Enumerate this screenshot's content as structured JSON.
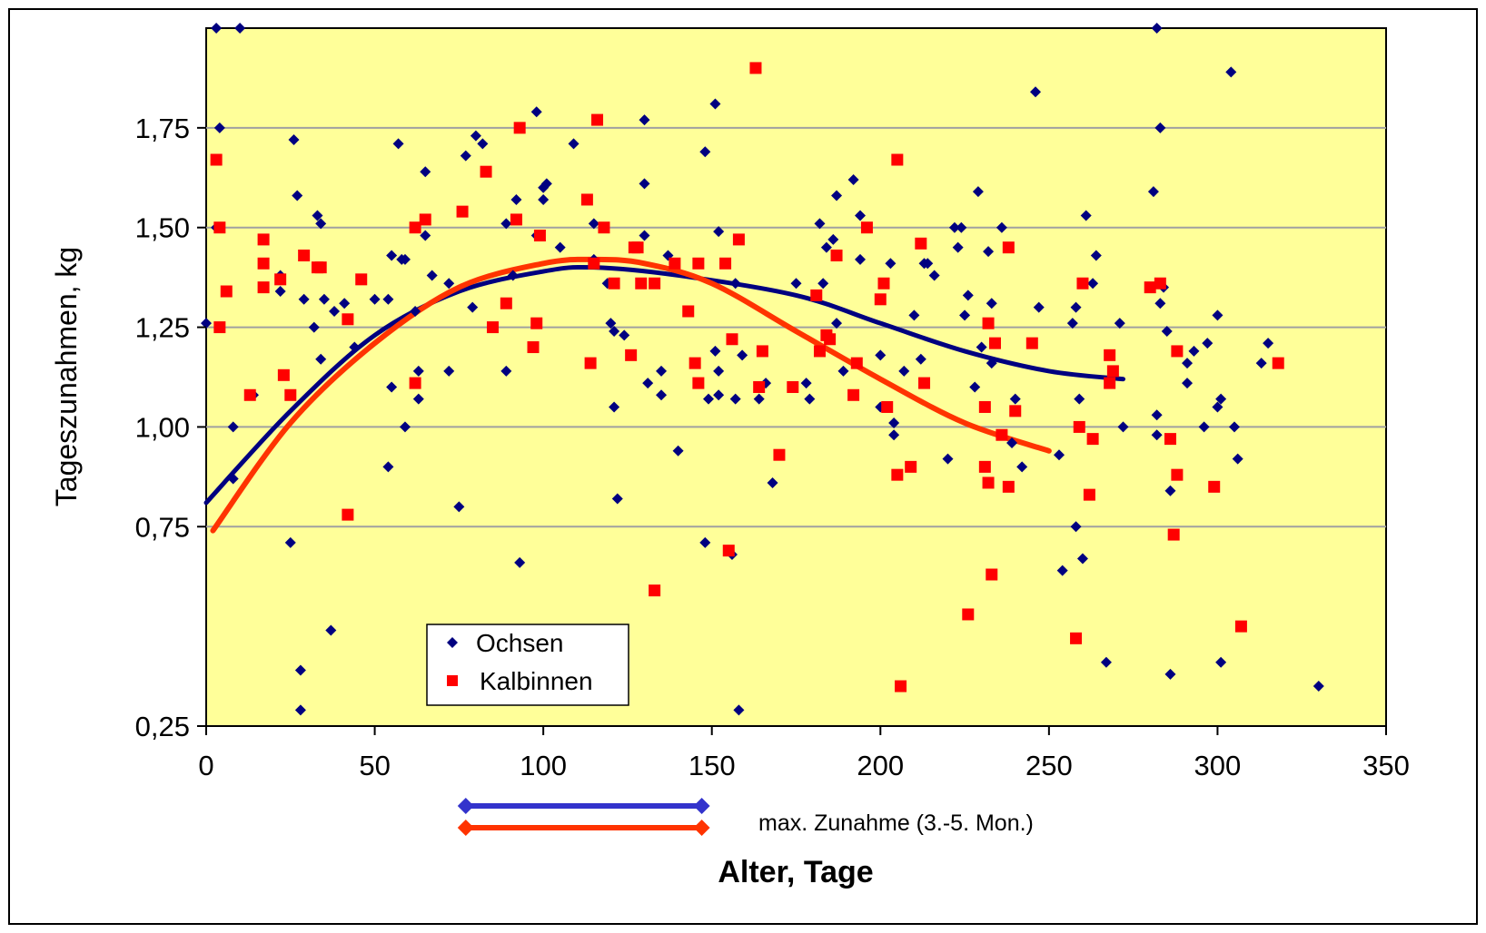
{
  "chart_data": {
    "type": "scatter",
    "xlabel": "Alter, Tage",
    "ylabel": "Tageszunahmen, kg",
    "xlim": [
      0,
      350
    ],
    "ylim": [
      0.25,
      2.0
    ],
    "x_ticks": [
      "0",
      "50",
      "100",
      "150",
      "200",
      "250",
      "300",
      "350"
    ],
    "x_tick_values": [
      0,
      50,
      100,
      150,
      200,
      250,
      300,
      350
    ],
    "y_ticks": [
      "0,25",
      "0,75",
      "1,00",
      "1,25",
      "1,50",
      "1,75"
    ],
    "y_tick_values": [
      0.25,
      0.75,
      1.0,
      1.25,
      1.5,
      1.75
    ],
    "grid": "horizontal",
    "plot_background": "#FFFF99",
    "legend_position": "bottom-left",
    "series": [
      {
        "name": "Ochsen",
        "marker": "diamond",
        "color": "#000080",
        "points": [
          [
            0,
            1.26
          ],
          [
            3,
            2.0
          ],
          [
            10,
            2.0
          ],
          [
            4,
            1.75
          ],
          [
            3,
            1.5
          ],
          [
            8,
            1.0
          ],
          [
            8,
            0.87
          ],
          [
            14,
            1.08
          ],
          [
            22,
            1.38
          ],
          [
            22,
            1.34
          ],
          [
            26,
            1.72
          ],
          [
            27,
            1.58
          ],
          [
            25,
            0.71
          ],
          [
            28,
            0.39
          ],
          [
            28,
            0.29
          ],
          [
            29,
            1.32
          ],
          [
            32,
            1.25
          ],
          [
            33,
            1.53
          ],
          [
            34,
            1.51
          ],
          [
            34,
            1.17
          ],
          [
            35,
            1.32
          ],
          [
            37,
            0.49
          ],
          [
            38,
            1.29
          ],
          [
            41,
            1.31
          ],
          [
            44,
            1.2
          ],
          [
            50,
            1.32
          ],
          [
            54,
            1.32
          ],
          [
            54,
            0.9
          ],
          [
            55,
            1.1
          ],
          [
            55,
            1.43
          ],
          [
            57,
            1.71
          ],
          [
            58,
            1.42
          ],
          [
            59,
            1.42
          ],
          [
            59,
            1.0
          ],
          [
            62,
            1.29
          ],
          [
            63,
            1.14
          ],
          [
            63,
            1.07
          ],
          [
            65,
            1.64
          ],
          [
            65,
            1.48
          ],
          [
            67,
            1.38
          ],
          [
            72,
            1.36
          ],
          [
            72,
            1.14
          ],
          [
            75,
            0.8
          ],
          [
            77,
            1.68
          ],
          [
            79,
            1.3
          ],
          [
            80,
            1.73
          ],
          [
            82,
            1.71
          ],
          [
            89,
            1.51
          ],
          [
            89,
            1.14
          ],
          [
            91,
            1.38
          ],
          [
            92,
            1.57
          ],
          [
            93,
            0.66
          ],
          [
            98,
            1.79
          ],
          [
            98,
            1.48
          ],
          [
            100,
            1.6
          ],
          [
            100,
            1.57
          ],
          [
            101,
            1.61
          ],
          [
            105,
            1.45
          ],
          [
            109,
            1.71
          ],
          [
            115,
            1.42
          ],
          [
            115,
            1.51
          ],
          [
            119,
            1.36
          ],
          [
            120,
            1.26
          ],
          [
            121,
            1.24
          ],
          [
            121,
            1.05
          ],
          [
            122,
            0.82
          ],
          [
            124,
            1.23
          ],
          [
            130,
            1.77
          ],
          [
            130,
            1.61
          ],
          [
            130,
            1.48
          ],
          [
            131,
            1.11
          ],
          [
            135,
            1.08
          ],
          [
            135,
            1.14
          ],
          [
            137,
            1.43
          ],
          [
            140,
            0.94
          ],
          [
            148,
            1.69
          ],
          [
            148,
            0.71
          ],
          [
            149,
            1.07
          ],
          [
            151,
            1.81
          ],
          [
            151,
            1.19
          ],
          [
            152,
            1.49
          ],
          [
            152,
            1.14
          ],
          [
            152,
            1.08
          ],
          [
            156,
            0.68
          ],
          [
            157,
            1.36
          ],
          [
            157,
            1.07
          ],
          [
            158,
            0.29
          ],
          [
            159,
            1.18
          ],
          [
            164,
            1.07
          ],
          [
            166,
            1.11
          ],
          [
            168,
            0.86
          ],
          [
            175,
            1.36
          ],
          [
            178,
            1.11
          ],
          [
            179,
            1.07
          ],
          [
            182,
            1.51
          ],
          [
            183,
            1.36
          ],
          [
            184,
            1.45
          ],
          [
            186,
            1.47
          ],
          [
            187,
            1.58
          ],
          [
            187,
            1.26
          ],
          [
            189,
            1.14
          ],
          [
            192,
            1.62
          ],
          [
            194,
            1.42
          ],
          [
            194,
            1.53
          ],
          [
            200,
            1.18
          ],
          [
            200,
            1.05
          ],
          [
            203,
            1.41
          ],
          [
            204,
            1.01
          ],
          [
            204,
            0.98
          ],
          [
            207,
            1.14
          ],
          [
            210,
            1.28
          ],
          [
            212,
            1.17
          ],
          [
            213,
            1.41
          ],
          [
            214,
            1.41
          ],
          [
            216,
            1.38
          ],
          [
            220,
            0.92
          ],
          [
            222,
            1.5
          ],
          [
            223,
            1.45
          ],
          [
            224,
            1.5
          ],
          [
            225,
            1.28
          ],
          [
            226,
            1.33
          ],
          [
            228,
            1.1
          ],
          [
            229,
            1.59
          ],
          [
            230,
            1.2
          ],
          [
            232,
            1.44
          ],
          [
            233,
            1.31
          ],
          [
            233,
            1.16
          ],
          [
            236,
            1.5
          ],
          [
            239,
            0.96
          ],
          [
            240,
            1.07
          ],
          [
            242,
            0.9
          ],
          [
            246,
            1.84
          ],
          [
            247,
            1.3
          ],
          [
            253,
            0.93
          ],
          [
            254,
            0.64
          ],
          [
            257,
            1.26
          ],
          [
            258,
            1.3
          ],
          [
            258,
            0.75
          ],
          [
            259,
            1.07
          ],
          [
            260,
            0.67
          ],
          [
            261,
            1.53
          ],
          [
            263,
            1.36
          ],
          [
            264,
            1.43
          ],
          [
            267,
            0.41
          ],
          [
            271,
            1.26
          ],
          [
            272,
            1.0
          ],
          [
            281,
            1.59
          ],
          [
            282,
            0.98
          ],
          [
            282,
            1.03
          ],
          [
            282,
            2.0
          ],
          [
            283,
            1.75
          ],
          [
            283,
            1.31
          ],
          [
            284,
            1.35
          ],
          [
            285,
            1.24
          ],
          [
            286,
            0.84
          ],
          [
            286,
            0.38
          ],
          [
            291,
            1.16
          ],
          [
            291,
            1.11
          ],
          [
            293,
            1.19
          ],
          [
            296,
            1.0
          ],
          [
            297,
            1.21
          ],
          [
            300,
            1.05
          ],
          [
            300,
            1.28
          ],
          [
            301,
            1.07
          ],
          [
            301,
            0.41
          ],
          [
            304,
            1.89
          ],
          [
            305,
            1.0
          ],
          [
            306,
            0.92
          ],
          [
            313,
            1.16
          ],
          [
            315,
            1.21
          ],
          [
            330,
            0.35
          ]
        ]
      },
      {
        "name": "Kalbinnen",
        "marker": "square",
        "color": "#FF0000",
        "points": [
          [
            3,
            1.67
          ],
          [
            4,
            1.5
          ],
          [
            4,
            1.25
          ],
          [
            6,
            1.34
          ],
          [
            13,
            1.08
          ],
          [
            17,
            1.47
          ],
          [
            17,
            1.41
          ],
          [
            17,
            1.35
          ],
          [
            22,
            1.37
          ],
          [
            23,
            1.13
          ],
          [
            25,
            1.08
          ],
          [
            29,
            1.43
          ],
          [
            33,
            1.4
          ],
          [
            34,
            1.4
          ],
          [
            42,
            0.78
          ],
          [
            42,
            1.27
          ],
          [
            46,
            1.37
          ],
          [
            62,
            1.11
          ],
          [
            62,
            1.5
          ],
          [
            65,
            1.52
          ],
          [
            76,
            1.54
          ],
          [
            83,
            1.64
          ],
          [
            85,
            1.25
          ],
          [
            89,
            1.31
          ],
          [
            92,
            1.52
          ],
          [
            93,
            1.75
          ],
          [
            97,
            1.2
          ],
          [
            98,
            1.26
          ],
          [
            99,
            1.48
          ],
          [
            113,
            1.57
          ],
          [
            114,
            1.16
          ],
          [
            115,
            1.41
          ],
          [
            116,
            1.77
          ],
          [
            118,
            1.5
          ],
          [
            121,
            1.36
          ],
          [
            126,
            1.18
          ],
          [
            127,
            1.45
          ],
          [
            128,
            1.45
          ],
          [
            129,
            1.36
          ],
          [
            133,
            1.36
          ],
          [
            133,
            0.59
          ],
          [
            139,
            1.41
          ],
          [
            143,
            1.29
          ],
          [
            145,
            1.16
          ],
          [
            146,
            1.41
          ],
          [
            146,
            1.11
          ],
          [
            154,
            1.41
          ],
          [
            155,
            0.69
          ],
          [
            156,
            1.22
          ],
          [
            158,
            1.47
          ],
          [
            163,
            1.9
          ],
          [
            164,
            1.1
          ],
          [
            165,
            1.19
          ],
          [
            170,
            0.93
          ],
          [
            174,
            1.1
          ],
          [
            181,
            1.33
          ],
          [
            182,
            1.19
          ],
          [
            184,
            1.23
          ],
          [
            185,
            1.22
          ],
          [
            187,
            1.43
          ],
          [
            192,
            1.08
          ],
          [
            193,
            1.16
          ],
          [
            196,
            1.5
          ],
          [
            200,
            1.32
          ],
          [
            201,
            1.36
          ],
          [
            202,
            1.05
          ],
          [
            205,
            0.88
          ],
          [
            205,
            1.67
          ],
          [
            206,
            0.35
          ],
          [
            209,
            0.9
          ],
          [
            212,
            1.46
          ],
          [
            213,
            1.11
          ],
          [
            226,
            0.53
          ],
          [
            231,
            0.9
          ],
          [
            231,
            1.05
          ],
          [
            232,
            1.26
          ],
          [
            232,
            0.86
          ],
          [
            233,
            0.63
          ],
          [
            234,
            1.21
          ],
          [
            236,
            0.98
          ],
          [
            238,
            1.45
          ],
          [
            238,
            0.85
          ],
          [
            240,
            1.04
          ],
          [
            245,
            1.21
          ],
          [
            258,
            0.47
          ],
          [
            259,
            1.0
          ],
          [
            260,
            1.36
          ],
          [
            262,
            0.83
          ],
          [
            263,
            0.97
          ],
          [
            268,
            1.18
          ],
          [
            268,
            1.11
          ],
          [
            269,
            1.14
          ],
          [
            280,
            1.35
          ],
          [
            283,
            1.36
          ],
          [
            286,
            0.97
          ],
          [
            287,
            0.73
          ],
          [
            288,
            1.19
          ],
          [
            288,
            0.88
          ],
          [
            299,
            0.85
          ],
          [
            307,
            0.5
          ],
          [
            318,
            1.16
          ]
        ]
      }
    ],
    "trend_lines": [
      {
        "series": "Ochsen",
        "color": "#000080",
        "points": [
          [
            0,
            0.81
          ],
          [
            25,
            1.04
          ],
          [
            50,
            1.23
          ],
          [
            75,
            1.34
          ],
          [
            100,
            1.39
          ],
          [
            115,
            1.4
          ],
          [
            140,
            1.38
          ],
          [
            175,
            1.33
          ],
          [
            200,
            1.26
          ],
          [
            225,
            1.19
          ],
          [
            250,
            1.14
          ],
          [
            272,
            1.12
          ]
        ]
      },
      {
        "series": "Kalbinnen",
        "color": "#FF3300",
        "points": [
          [
            2,
            0.74
          ],
          [
            25,
            1.01
          ],
          [
            50,
            1.21
          ],
          [
            75,
            1.35
          ],
          [
            100,
            1.41
          ],
          [
            115,
            1.42
          ],
          [
            130,
            1.41
          ],
          [
            150,
            1.36
          ],
          [
            175,
            1.24
          ],
          [
            200,
            1.12
          ],
          [
            225,
            1.01
          ],
          [
            250,
            0.94
          ]
        ]
      }
    ],
    "annotation": {
      "text": "max. Zunahme (3.-5. Mon.)",
      "ranges": [
        {
          "series": "Ochsen",
          "color": "#3333CC",
          "from": 77,
          "to": 147
        },
        {
          "series": "Kalbinnen",
          "color": "#FF3300",
          "from": 77,
          "to": 147
        }
      ]
    }
  }
}
